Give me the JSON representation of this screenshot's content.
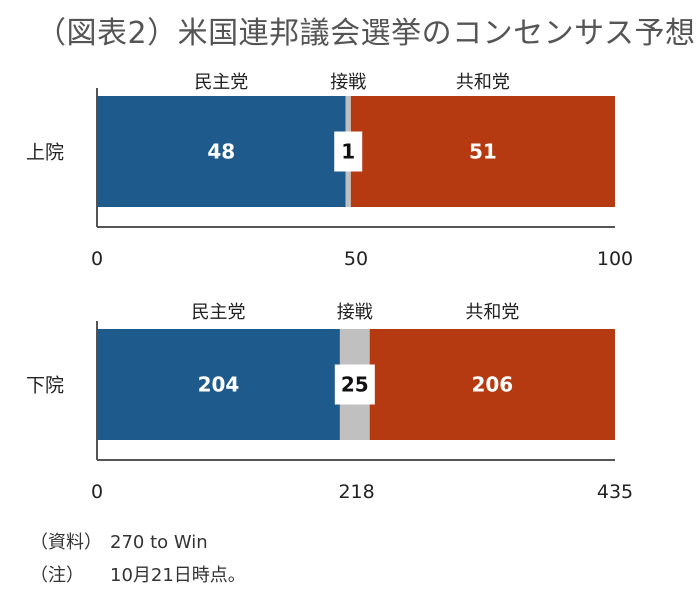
{
  "title": "（図表2）米国連邦議会選挙のコンセンサス予想",
  "colors": {
    "dem": "#1f5a8c",
    "rep": "#b53a11",
    "tie": "#c0c0c0",
    "axis": "#555555"
  },
  "chart_data": [
    {
      "type": "bar",
      "stacked": true,
      "orientation": "horizontal",
      "category": "上院",
      "series": [
        {
          "name": "民主党",
          "value": 48
        },
        {
          "name": "接戦",
          "value": 1
        },
        {
          "name": "共和党",
          "value": 51
        }
      ],
      "xlim": [
        0,
        100
      ],
      "ticks": [
        {
          "value": 0,
          "label": "0"
        },
        {
          "value": 50,
          "label": "50"
        },
        {
          "value": 100,
          "label": "100"
        }
      ]
    },
    {
      "type": "bar",
      "stacked": true,
      "orientation": "horizontal",
      "category": "下院",
      "series": [
        {
          "name": "民主党",
          "value": 204
        },
        {
          "name": "接戦",
          "value": 25
        },
        {
          "name": "共和党",
          "value": 206
        }
      ],
      "xlim": [
        0,
        435
      ],
      "ticks": [
        {
          "value": 0,
          "label": "0"
        },
        {
          "value": 218,
          "label": "218"
        },
        {
          "value": 435,
          "label": "435"
        }
      ]
    }
  ],
  "notes": [
    {
      "key": "（資料）",
      "text": "270 to Win"
    },
    {
      "key": "（注）",
      "text": "10月21日時点。"
    }
  ]
}
